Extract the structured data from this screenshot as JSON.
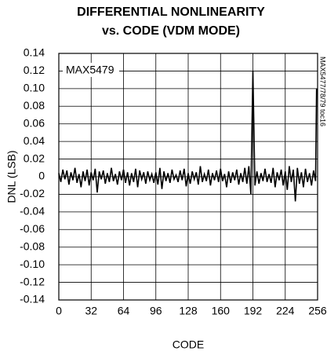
{
  "chart_data": {
    "type": "line",
    "title_lines": [
      "DIFFERENTIAL NONLINEARITY",
      "vs. CODE (VDM MODE)"
    ],
    "x_label": "CODE",
    "y_label": "DNL (LSB)",
    "annotation": "MAX5479",
    "side_note": "MAX5477/78/79 toc16",
    "xlim": [
      0,
      256
    ],
    "ylim": [
      -0.14,
      0.14
    ],
    "xticks": [
      0,
      32,
      64,
      96,
      128,
      160,
      192,
      224,
      256
    ],
    "yticks": [
      0.14,
      0.12,
      {
        "value": 0.1,
        "label": "0.10"
      },
      0.08,
      0.06,
      0.04,
      0.02,
      0,
      -0.02,
      -0.04,
      -0.06,
      -0.08,
      {
        "value": -0.1,
        "label": "-0.10"
      },
      -0.12,
      -0.14
    ],
    "grid": true,
    "x": [
      0,
      2,
      4,
      6,
      8,
      10,
      12,
      14,
      16,
      18,
      20,
      22,
      24,
      26,
      28,
      30,
      32,
      34,
      36,
      38,
      40,
      42,
      44,
      46,
      48,
      50,
      52,
      54,
      56,
      58,
      60,
      62,
      64,
      66,
      68,
      70,
      72,
      74,
      76,
      78,
      80,
      82,
      84,
      86,
      88,
      90,
      92,
      94,
      96,
      98,
      100,
      102,
      104,
      106,
      108,
      110,
      112,
      114,
      116,
      118,
      120,
      122,
      124,
      126,
      128,
      130,
      132,
      134,
      136,
      138,
      140,
      142,
      144,
      146,
      148,
      150,
      152,
      154,
      156,
      158,
      160,
      162,
      164,
      166,
      168,
      170,
      172,
      174,
      176,
      178,
      180,
      182,
      184,
      186,
      188,
      190,
      192,
      194,
      196,
      198,
      200,
      202,
      204,
      206,
      208,
      210,
      212,
      214,
      216,
      218,
      220,
      222,
      224,
      226,
      228,
      230,
      232,
      234,
      236,
      238,
      240,
      242,
      244,
      246,
      248,
      250,
      252,
      254,
      255
    ],
    "series": [
      {
        "color": "#000000",
        "values": [
          0.004,
          -0.006,
          0.008,
          -0.003,
          0.007,
          -0.009,
          0.005,
          -0.004,
          0.01,
          -0.007,
          0.003,
          -0.012,
          0.006,
          -0.005,
          0.008,
          -0.01,
          0.005,
          -0.004,
          0.009,
          -0.018,
          0.006,
          -0.003,
          0.007,
          -0.008,
          0.004,
          -0.006,
          0.01,
          -0.005,
          0.003,
          -0.009,
          0.006,
          -0.004,
          0.008,
          -0.007,
          0.005,
          -0.01,
          0.004,
          -0.006,
          0.009,
          -0.012,
          0.007,
          -0.003,
          0.005,
          -0.008,
          0.006,
          -0.004,
          0.003,
          -0.007,
          0.005,
          -0.009,
          0.01,
          -0.014,
          0.006,
          -0.005,
          0.004,
          -0.007,
          0.008,
          -0.003,
          0.002,
          -0.006,
          0.007,
          -0.004,
          0.009,
          -0.011,
          0.004,
          -0.008,
          0.006,
          -0.003,
          0.005,
          -0.009,
          0.012,
          -0.006,
          0.003,
          -0.005,
          0.008,
          -0.01,
          0.004,
          -0.004,
          0.007,
          -0.006,
          0.009,
          -0.005,
          0.003,
          -0.012,
          0.006,
          -0.007,
          0.005,
          -0.004,
          0.008,
          -0.009,
          0.004,
          -0.006,
          0.01,
          -0.008,
          0.012,
          -0.02,
          0.12,
          -0.01,
          0.006,
          -0.008,
          0.004,
          -0.005,
          0.009,
          -0.006,
          0.003,
          -0.007,
          0.01,
          -0.012,
          0.005,
          -0.004,
          0.008,
          -0.01,
          0.006,
          -0.015,
          0.012,
          -0.006,
          0.008,
          -0.028,
          0.01,
          -0.008,
          0.005,
          -0.012,
          0.009,
          -0.006,
          0.004,
          -0.01,
          0.007,
          -0.005,
          0.1
        ]
      }
    ]
  }
}
